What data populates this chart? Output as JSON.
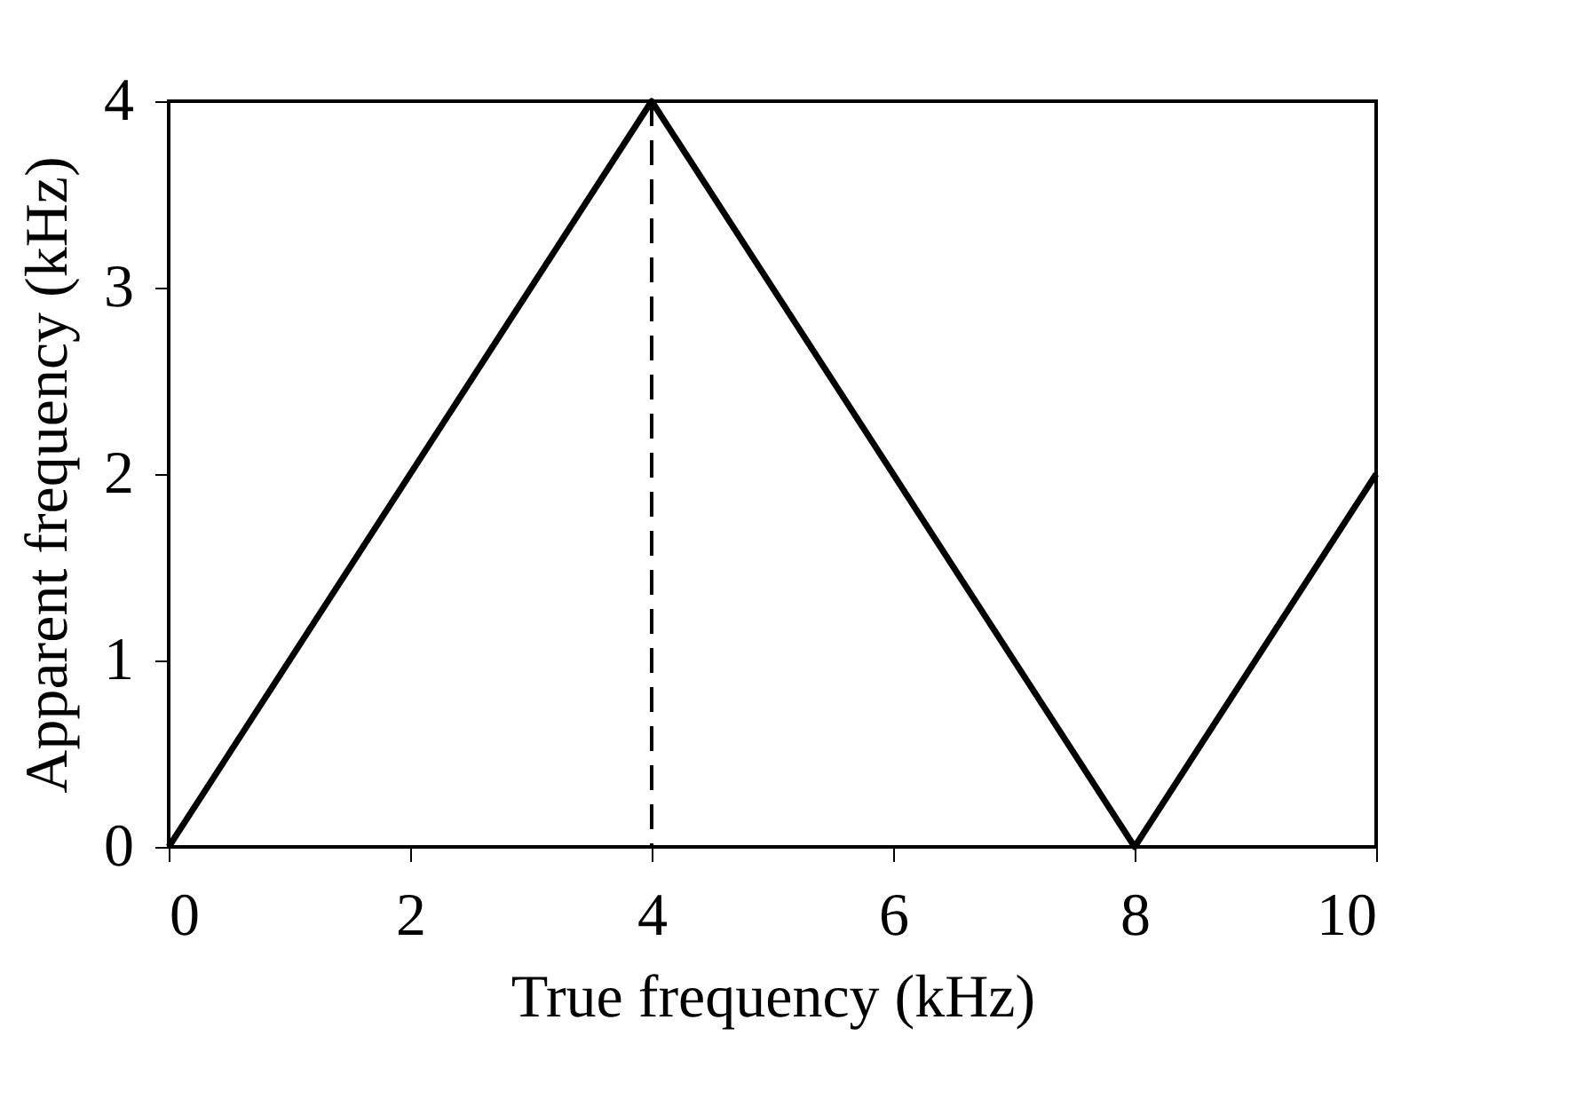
{
  "chart_data": {
    "type": "line",
    "xlabel": "True frequency (kHz)",
    "ylabel": "Apparent frequency (kHz)",
    "x": [
      0,
      4,
      8,
      10
    ],
    "series": [
      {
        "color": "#000000",
        "values": [
          0,
          4,
          0,
          2
        ]
      }
    ],
    "xlim": [
      0,
      10
    ],
    "xticks": [
      0,
      2,
      4,
      6,
      8,
      10
    ],
    "ylim": [
      0,
      4
    ],
    "yticks": [
      0,
      1,
      2,
      3,
      4
    ],
    "ref_lines": [
      {
        "axis": "x",
        "value": 4,
        "color": "#000000",
        "line_style": "dashed"
      }
    ],
    "grid": false,
    "marker": "none",
    "line_style": "solid"
  }
}
